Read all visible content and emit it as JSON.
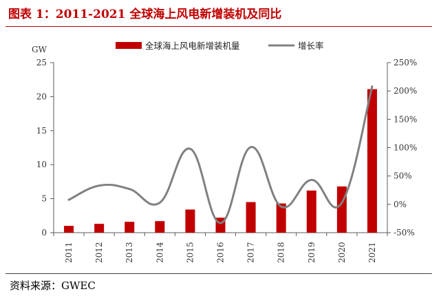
{
  "figure_title": "图表 1：2011-2021 全球海上风电新增装机及同比",
  "source": "资料来源：GWEC",
  "colors": {
    "bar": "#c00000",
    "line": "#808080",
    "title": "#c00000"
  },
  "chart_data": {
    "type": "bar",
    "title": "",
    "categories": [
      "2011",
      "2012",
      "2013",
      "2014",
      "2015",
      "2016",
      "2017",
      "2018",
      "2019",
      "2020",
      "2021"
    ],
    "series": [
      {
        "name": "全球海上风电新增装机量",
        "type": "bar",
        "axis": "left",
        "values": [
          1.0,
          1.3,
          1.6,
          1.7,
          3.4,
          2.2,
          4.5,
          4.3,
          6.2,
          6.8,
          21.1
        ]
      },
      {
        "name": "增长率",
        "type": "line",
        "axis": "right",
        "values": [
          8,
          33,
          27,
          3,
          98,
          -33,
          101,
          -4,
          43,
          3,
          208
        ]
      }
    ],
    "y_left": {
      "label": "GW",
      "min": 0,
      "max": 25,
      "ticks": [
        "0",
        "5",
        "10",
        "15",
        "20",
        "25"
      ]
    },
    "y_right": {
      "label": "",
      "min": -50,
      "max": 250,
      "ticks": [
        "-50%",
        "0%",
        "50%",
        "100%",
        "150%",
        "200%",
        "250%"
      ]
    },
    "legend": "top-center",
    "grid": false
  }
}
